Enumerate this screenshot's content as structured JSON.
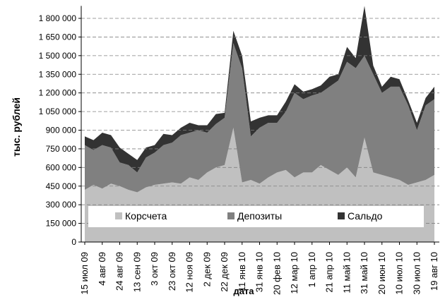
{
  "chart_data": {
    "type": "stacked_area",
    "x_label": "дата",
    "y_label": "тыс. рублей",
    "categories": [
      "15 июл 09",
      null,
      "4 авг 09",
      null,
      "24 авг 09",
      null,
      "13 сен 09",
      null,
      "3 окт 09",
      null,
      "23 окт 09",
      null,
      "12 ноя 09",
      null,
      "2 дек 09",
      null,
      "22 дек 09",
      null,
      "11 янв 10",
      null,
      "31 янв 10",
      null,
      "20 фев 10",
      null,
      "12 мар 10",
      null,
      "1 апр 10",
      null,
      "21 апр 10",
      null,
      "11 май 10",
      null,
      "31 май 10",
      null,
      "20 июн 10",
      null,
      "10 июл 10",
      null,
      "30 июл 10",
      null,
      "19 авг 10"
    ],
    "series": [
      {
        "name": "Корсчета",
        "color": "#c0c0c0",
        "values": [
          420000,
          460000,
          430000,
          470000,
          450000,
          420000,
          400000,
          440000,
          460000,
          470000,
          480000,
          470000,
          520000,
          500000,
          560000,
          600000,
          620000,
          920000,
          480000,
          500000,
          470000,
          520000,
          560000,
          580000,
          520000,
          560000,
          560000,
          620000,
          580000,
          540000,
          600000,
          520000,
          840000,
          560000,
          540000,
          520000,
          500000,
          460000,
          480000,
          500000,
          540000
        ]
      },
      {
        "name": "Депозиты",
        "color": "#808080",
        "values": [
          360000,
          280000,
          350000,
          290000,
          190000,
          200000,
          160000,
          240000,
          260000,
          310000,
          320000,
          390000,
          360000,
          400000,
          320000,
          350000,
          380000,
          680000,
          920000,
          350000,
          450000,
          440000,
          400000,
          470000,
          680000,
          590000,
          620000,
          580000,
          670000,
          760000,
          850000,
          880000,
          660000,
          790000,
          660000,
          730000,
          750000,
          640000,
          420000,
          600000,
          610000
        ]
      },
      {
        "name": "Сальдо",
        "color": "#333333",
        "values": [
          70000,
          80000,
          100000,
          100000,
          120000,
          90000,
          100000,
          80000,
          60000,
          90000,
          60000,
          60000,
          80000,
          40000,
          60000,
          80000,
          40000,
          100000,
          100000,
          120000,
          80000,
          60000,
          60000,
          80000,
          70000,
          60000,
          50000,
          60000,
          80000,
          50000,
          120000,
          80000,
          400000,
          70000,
          50000,
          80000,
          60000,
          40000,
          60000,
          60000,
          100000
        ]
      }
    ],
    "ylim": [
      0,
      1900000
    ],
    "yticks": [
      0,
      {
        "value": 150000,
        "label": "150 000"
      },
      {
        "value": 300000,
        "label": "300 000"
      },
      {
        "value": 450000,
        "label": "450 000"
      },
      {
        "value": 600000,
        "label": "600 000"
      },
      {
        "value": 750000,
        "label": "750 000"
      },
      {
        "value": 900000,
        "label": "900 000"
      },
      {
        "value": 1050000,
        "label": "1 050 000"
      },
      {
        "value": 1200000,
        "label": "1 200 000"
      },
      {
        "value": 1350000,
        "label": "1 350 000"
      },
      {
        "value": 1500000,
        "label": "1 500 000"
      },
      {
        "value": 1650000,
        "label": "1 650 000"
      },
      {
        "value": 1800000,
        "label": "1 800 000"
      }
    ],
    "grid": true,
    "legend": "bottom"
  }
}
